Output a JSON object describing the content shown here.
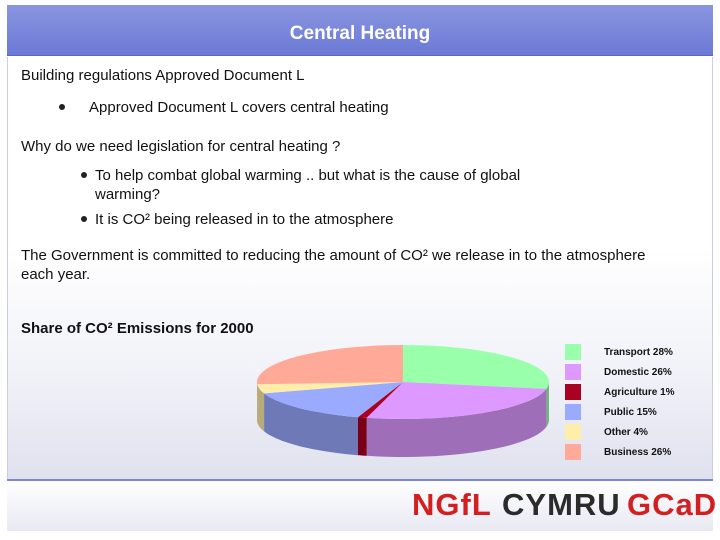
{
  "slide": {
    "title": "Central Heating",
    "heading": "Building regulations Approved Document L",
    "bullet_1": "Approved Document L covers central heating",
    "question": "Why do we need legislation for central heating ?",
    "bullet_2_line1": "To help combat global warming .. but what is the cause of global",
    "bullet_2_line2": "warming?",
    "bullet_3": "It is CO² being released in to the atmosphere",
    "paragraph_line1": "The Government is committed to reducing the amount of CO² we release in to the atmosphere",
    "paragraph_line2": "each year.",
    "chart_heading": "Share of CO² Emissions for 2000"
  },
  "logo": {
    "ngfl": "NGfL",
    "cymru": "CYMRU",
    "gcad": "GCaD",
    "colors": {
      "red": "#d21f1f",
      "dark": "#2b2b2b"
    }
  },
  "chart_data": {
    "type": "pie",
    "style": "3d",
    "title": "Share of CO² Emissions for 2000",
    "legend_position": "right",
    "slices": [
      {
        "label": "Transport 28%",
        "value": 28,
        "color": "#99ffaa"
      },
      {
        "label": "Domestic 26%",
        "value": 26,
        "color": "#dd99ff"
      },
      {
        "label": "Agriculture 1%",
        "value": 1,
        "color": "#aa0022"
      },
      {
        "label": "Public 15%",
        "value": 15,
        "color": "#99aaff"
      },
      {
        "label": "Other 4%",
        "value": 4,
        "color": "#ffeeaa"
      },
      {
        "label": "Business 26%",
        "value": 26,
        "color": "#ffaa99"
      }
    ]
  }
}
